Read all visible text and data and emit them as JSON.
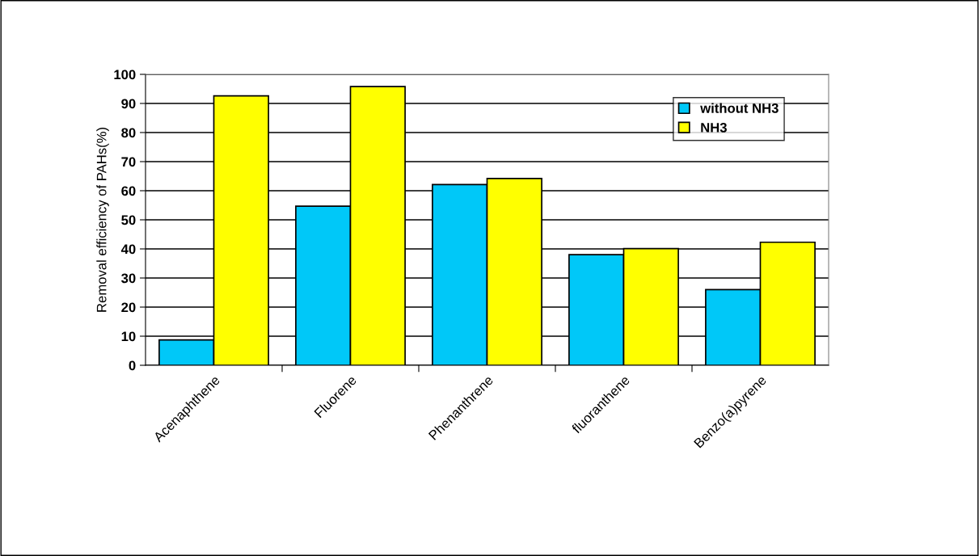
{
  "chart_data": {
    "type": "bar",
    "ylabel": "Removal efficiency of PAHs(%)",
    "categories": [
      "Acenaphthene",
      "Fluorene",
      "Phenanthrene",
      "fluoranthene",
      "Benzo(a)pyrene"
    ],
    "series": [
      {
        "name": "without NH3",
        "color": "#00c8f8",
        "values": [
          8.7,
          54.7,
          62.1,
          38.0,
          26.0
        ]
      },
      {
        "name": "NH3",
        "color": "#ffff00",
        "values": [
          92.6,
          95.8,
          64.2,
          40.1,
          42.3
        ]
      }
    ],
    "ylim": [
      0,
      100
    ],
    "yticks": [
      0,
      10,
      20,
      30,
      40,
      50,
      60,
      70,
      80,
      90,
      100
    ],
    "grid": "y",
    "legend": "top right"
  }
}
